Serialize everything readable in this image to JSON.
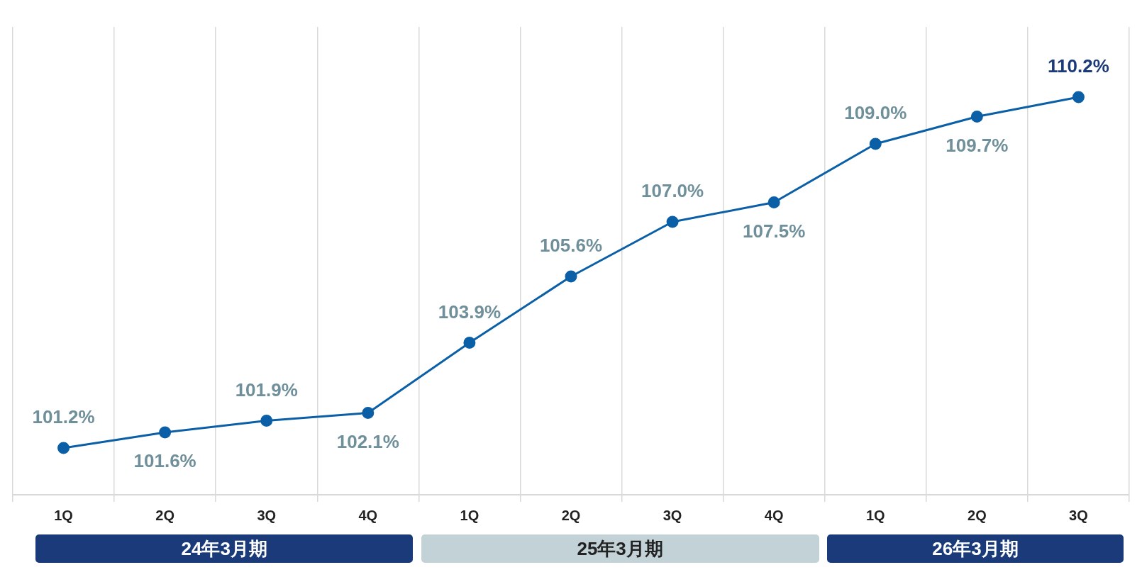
{
  "chart_data": {
    "type": "line",
    "categories": [
      "1Q",
      "2Q",
      "3Q",
      "4Q",
      "1Q",
      "2Q",
      "3Q",
      "4Q",
      "1Q",
      "2Q",
      "3Q"
    ],
    "series": [
      {
        "color": "#0a5fa6",
        "values": [
          101.2,
          101.6,
          101.9,
          102.1,
          103.9,
          105.6,
          107.0,
          107.5,
          109.0,
          109.7,
          110.2
        ],
        "value_labels": [
          "101.2%",
          "101.6%",
          "101.9%",
          "102.1%",
          "103.9%",
          "105.6%",
          "107.0%",
          "107.5%",
          "109.0%",
          "109.7%",
          "110.2%"
        ]
      }
    ],
    "annotations": [
      "24年3月期",
      "25年3月期",
      "26年3月期"
    ],
    "grid": "x",
    "marker": "circle",
    "line_style": "solid",
    "legend": false
  }
}
